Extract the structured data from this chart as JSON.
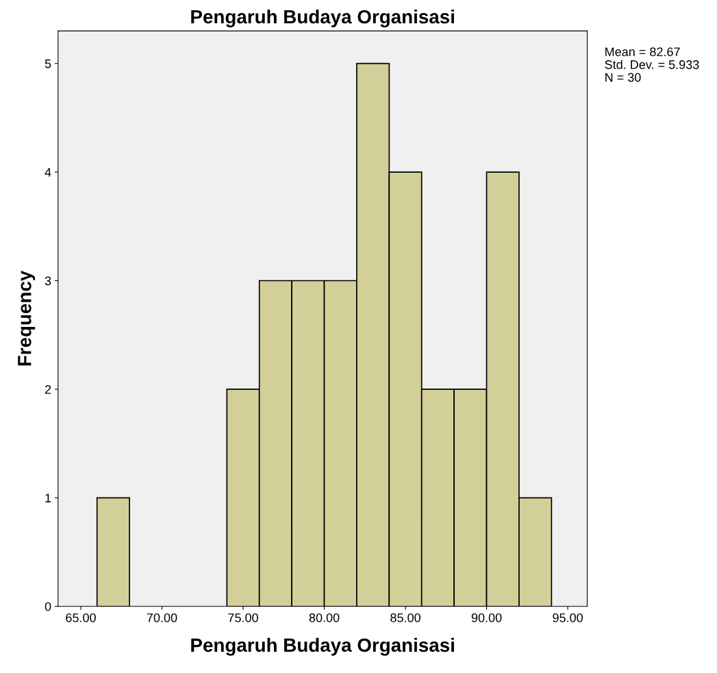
{
  "chart_data": {
    "type": "histogram",
    "title": "Pengaruh Budaya Organisasi",
    "xlabel": "Pengaruh Budaya Organisasi",
    "ylabel": "Frequency",
    "bins": [
      66,
      68,
      70,
      72,
      74,
      76,
      78,
      80,
      82,
      84,
      86,
      88,
      90,
      92,
      94
    ],
    "values": [
      1,
      0,
      0,
      0,
      2,
      3,
      3,
      3,
      5,
      4,
      2,
      2,
      4,
      1
    ],
    "color": "#d3cf99",
    "xlim": [
      63.6,
      96.2
    ],
    "xticks": [
      {
        "value": 65,
        "label": "65.00"
      },
      {
        "value": 70,
        "label": "70.00"
      },
      {
        "value": 75,
        "label": "75.00"
      },
      {
        "value": 80,
        "label": "80.00"
      },
      {
        "value": 85,
        "label": "85.00"
      },
      {
        "value": 90,
        "label": "90.00"
      },
      {
        "value": 95,
        "label": "95.00"
      }
    ],
    "ylim": [
      0,
      5.3
    ],
    "yticks": [
      0,
      1,
      2,
      3,
      4,
      5
    ],
    "annotations": [
      "Mean = 82.67",
      "Std. Dev. = 5.933",
      "N = 30"
    ],
    "grid": false
  }
}
